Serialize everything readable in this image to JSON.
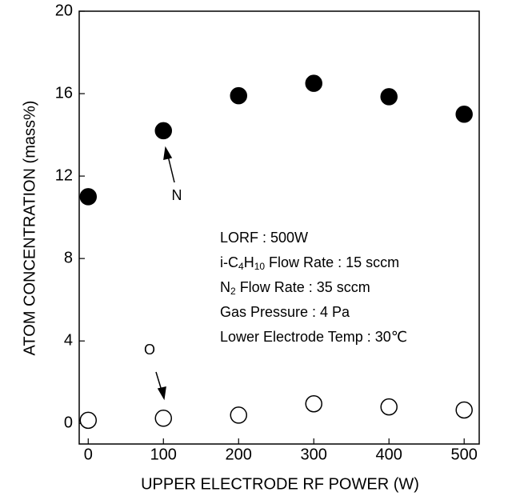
{
  "chart_data": {
    "type": "scatter",
    "x_label": "UPPER ELECTRODE RF POWER (W)",
    "y_label": "ATOM CONCENTRATION (mass%)",
    "x": [
      0,
      100,
      200,
      300,
      400,
      500
    ],
    "series": [
      {
        "name": "N",
        "color": "#000000",
        "filled": true,
        "values": [
          11.0,
          14.2,
          15.9,
          16.5,
          15.85,
          15.0
        ]
      },
      {
        "name": "O",
        "color": "#000000",
        "filled": false,
        "values": [
          0.15,
          0.25,
          0.4,
          0.95,
          0.8,
          0.65
        ]
      }
    ],
    "xlim": [
      -12,
      520
    ],
    "ylim": [
      -1,
      20
    ],
    "xticks": [
      0,
      100,
      200,
      300,
      400,
      500
    ],
    "yticks": [
      0,
      4,
      8,
      12,
      16,
      20
    ],
    "grid": false,
    "annotation_lines": [
      [
        {
          "text": "LORF : 500W"
        }
      ],
      [
        {
          "text": "i-C"
        },
        {
          "text": "4",
          "sub": true
        },
        {
          "text": "H"
        },
        {
          "text": "10",
          "sub": true
        },
        {
          "text": " Flow Rate : 15 sccm"
        }
      ],
      [
        {
          "text": "N"
        },
        {
          "text": "2",
          "sub": true
        },
        {
          "text": " Flow Rate : 35 sccm"
        }
      ],
      [
        {
          "text": "Gas Pressure : 4 Pa"
        }
      ],
      [
        {
          "text": "Lower Electrode Temp : 30℃"
        }
      ]
    ]
  }
}
